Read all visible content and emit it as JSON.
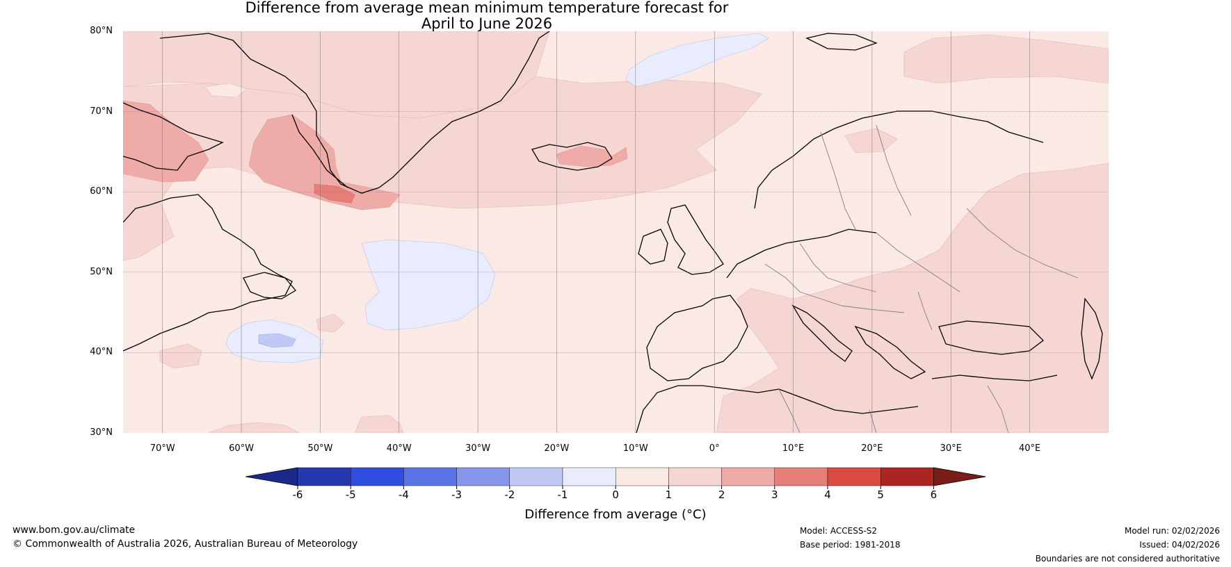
{
  "title": {
    "line1": "Difference from average mean minimum temperature forecast for",
    "line2": "April to June 2026"
  },
  "map": {
    "region": "North Atlantic and Europe",
    "lat_labels": [
      "80°N",
      "70°N",
      "60°N",
      "50°N",
      "40°N",
      "30°N"
    ],
    "lon_labels": [
      "70°W",
      "60°W",
      "50°W",
      "40°W",
      "30°W",
      "20°W",
      "10°W",
      "0°",
      "10°E",
      "20°E",
      "30°E",
      "40°E"
    ]
  },
  "colorbar": {
    "ticks": [
      "-6",
      "-5",
      "-4",
      "-3",
      "-2",
      "-1",
      "0",
      "1",
      "2",
      "3",
      "4",
      "5",
      "6"
    ],
    "colors": [
      "#1a2a8c",
      "#2438b0",
      "#2f4ee0",
      "#5a74e6",
      "#8798ec",
      "#c0c8f4",
      "#e8ecfc",
      "#fbe9e6",
      "#f5d6d3",
      "#eeaba7",
      "#e57f77",
      "#da4a40",
      "#ab2620",
      "#7a1c18"
    ],
    "label": "Difference from average (°C)"
  },
  "footer": {
    "website": "www.bom.gov.au/climate",
    "copyright": "© Commonwealth of Australia 2026, Australian Bureau of Meteorology",
    "model": "Model: ACCESS-S2",
    "base_period": "Base period: 1981-2018",
    "model_run": "Model run: 02/02/2026",
    "issued": "Issued: 04/02/2026",
    "disclaimer": "Boundaries are not considered authoritative"
  }
}
